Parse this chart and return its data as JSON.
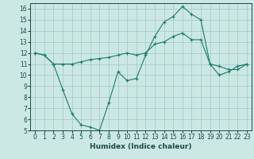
{
  "title": "",
  "xlabel": "Humidex (Indice chaleur)",
  "x": [
    0,
    1,
    2,
    3,
    4,
    5,
    6,
    7,
    8,
    9,
    10,
    11,
    12,
    13,
    14,
    15,
    16,
    17,
    18,
    19,
    20,
    21,
    22,
    23
  ],
  "line1": [
    12.0,
    11.8,
    11.0,
    8.7,
    6.5,
    5.5,
    5.3,
    5.0,
    7.5,
    10.3,
    9.5,
    9.7,
    11.8,
    13.5,
    14.8,
    15.3,
    16.2,
    15.5,
    15.0,
    11.0,
    10.0,
    10.3,
    10.8,
    11.0
  ],
  "line2": [
    12.0,
    11.8,
    11.0,
    11.0,
    11.0,
    11.2,
    11.4,
    11.5,
    11.6,
    11.8,
    12.0,
    11.8,
    12.0,
    12.8,
    13.0,
    13.5,
    13.8,
    13.2,
    13.2,
    11.0,
    10.8,
    10.5,
    10.5,
    11.0
  ],
  "line_color": "#1a7a6e",
  "bg_color": "#cce8e4",
  "grid_color": "#a0c8c4",
  "ylim": [
    5,
    16.5
  ],
  "yticks": [
    5,
    6,
    7,
    8,
    9,
    10,
    11,
    12,
    13,
    14,
    15,
    16
  ],
  "xlim": [
    -0.5,
    23.5
  ]
}
